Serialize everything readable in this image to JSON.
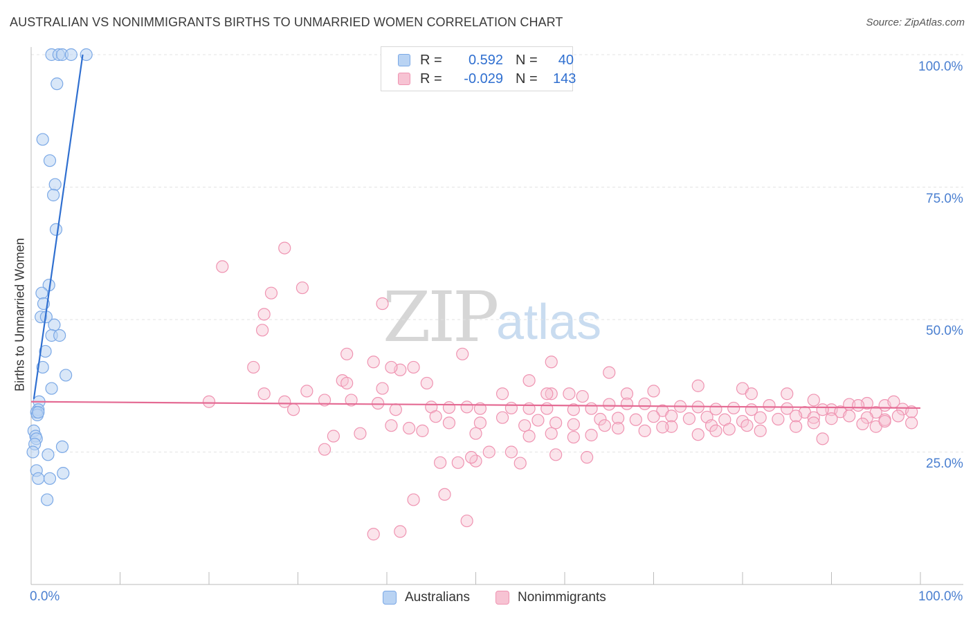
{
  "title": "AUSTRALIAN VS NONIMMIGRANTS BIRTHS TO UNMARRIED WOMEN CORRELATION CHART",
  "source": "Source: ZipAtlas.com",
  "watermark": {
    "zip": "ZIP",
    "atlas": "atlas"
  },
  "colors": {
    "blue_fill": "#b9d3f3",
    "blue_stroke": "#7aa8e6",
    "blue_line": "#2f6fd0",
    "pink_fill": "#f7c3d3",
    "pink_stroke": "#ef93b1",
    "pink_line": "#e46a93",
    "tick_text": "#4a7fd0",
    "grid": "#e3e3e3"
  },
  "legend": {
    "rows": [
      {
        "r_label": "R =",
        "r_value": "0.592",
        "n_label": "N =",
        "n_value": "40"
      },
      {
        "r_label": "R =",
        "r_value": "-0.029",
        "n_label": "N =",
        "n_value": "143"
      }
    ]
  },
  "bottom_legend": {
    "australians": "Australians",
    "nonimmigrants": "Nonimmigrants"
  },
  "chart_data": {
    "type": "scatter",
    "title": "AUSTRALIAN VS NONIMMIGRANTS BIRTHS TO UNMARRIED WOMEN CORRELATION CHART",
    "xlabel": "",
    "ylabel": "Births to Unmarried Women",
    "xlim": [
      0,
      100
    ],
    "ylim": [
      0,
      102
    ],
    "x_tick_labels": [
      "0.0%",
      "100.0%"
    ],
    "y_tick_labels": [
      "100.0%",
      "75.0%",
      "50.0%",
      "25.0%"
    ],
    "y_grid_values": [
      25,
      50,
      75,
      100
    ],
    "series": [
      {
        "name": "Australians",
        "R": 0.592,
        "N": 40,
        "trend": {
          "x": [
            0.3,
            5.8
          ],
          "y": [
            35.0,
            100.0
          ]
        },
        "points": [
          [
            2.3,
            100
          ],
          [
            3.1,
            100
          ],
          [
            3.5,
            100
          ],
          [
            4.5,
            100
          ],
          [
            6.2,
            100
          ],
          [
            2.9,
            94.5
          ],
          [
            1.3,
            84
          ],
          [
            2.1,
            80
          ],
          [
            2.7,
            75.5
          ],
          [
            2.5,
            73.5
          ],
          [
            2.8,
            67
          ],
          [
            2.0,
            56.5
          ],
          [
            1.2,
            55
          ],
          [
            1.4,
            53
          ],
          [
            1.1,
            50.5
          ],
          [
            1.7,
            50.5
          ],
          [
            2.6,
            49
          ],
          [
            2.3,
            47
          ],
          [
            3.2,
            47
          ],
          [
            1.6,
            44
          ],
          [
            1.3,
            41
          ],
          [
            3.9,
            39.5
          ],
          [
            2.3,
            37
          ],
          [
            0.9,
            34.5
          ],
          [
            0.8,
            33
          ],
          [
            0.6,
            32.5
          ],
          [
            0.7,
            32
          ],
          [
            0.3,
            29
          ],
          [
            0.5,
            28
          ],
          [
            0.6,
            27.5
          ],
          [
            0.4,
            26.5
          ],
          [
            3.5,
            26
          ],
          [
            0.2,
            25
          ],
          [
            1.9,
            24.5
          ],
          [
            0.6,
            21.5
          ],
          [
            3.6,
            21
          ],
          [
            0.8,
            20
          ],
          [
            2.1,
            20
          ],
          [
            1.8,
            16
          ],
          [
            0.8,
            32.5
          ]
        ]
      },
      {
        "name": "Nonimmigrants",
        "R": -0.029,
        "N": 143,
        "trend": {
          "x": [
            0,
            100
          ],
          "y": [
            34.5,
            33.3
          ]
        },
        "points": [
          [
            28.5,
            63.5
          ],
          [
            21.5,
            60
          ],
          [
            30.5,
            56
          ],
          [
            39.5,
            53
          ],
          [
            27,
            55
          ],
          [
            26.2,
            51
          ],
          [
            26,
            48
          ],
          [
            35.5,
            43.5
          ],
          [
            48.5,
            43.5
          ],
          [
            38.5,
            42
          ],
          [
            58.5,
            42
          ],
          [
            25,
            41
          ],
          [
            41.5,
            40.5
          ],
          [
            43,
            41
          ],
          [
            40.5,
            41
          ],
          [
            65,
            40
          ],
          [
            56,
            38.5
          ],
          [
            44.5,
            38
          ],
          [
            35,
            38.5
          ],
          [
            35.5,
            38
          ],
          [
            39.5,
            37
          ],
          [
            31,
            36.5
          ],
          [
            26.2,
            36
          ],
          [
            53,
            36
          ],
          [
            60.5,
            36
          ],
          [
            58.5,
            36
          ],
          [
            58,
            36
          ],
          [
            62,
            35.5
          ],
          [
            70,
            36.5
          ],
          [
            67,
            36
          ],
          [
            75,
            37.5
          ],
          [
            80,
            37
          ],
          [
            81,
            36
          ],
          [
            85,
            36
          ],
          [
            88,
            34.8
          ],
          [
            90,
            33
          ],
          [
            92,
            34
          ],
          [
            94,
            34.2
          ],
          [
            96,
            33.8
          ],
          [
            97,
            34.5
          ],
          [
            20,
            34.5
          ],
          [
            28.5,
            34.5
          ],
          [
            33,
            34.8
          ],
          [
            36,
            34.8
          ],
          [
            39,
            34.2
          ],
          [
            45,
            33.5
          ],
          [
            47,
            33.4
          ],
          [
            49,
            33.5
          ],
          [
            50.5,
            33.2
          ],
          [
            54,
            33.3
          ],
          [
            56,
            33.2
          ],
          [
            58,
            33.2
          ],
          [
            61,
            33
          ],
          [
            63,
            33.2
          ],
          [
            65,
            34
          ],
          [
            67,
            34.1
          ],
          [
            69,
            34.1
          ],
          [
            71,
            32.8
          ],
          [
            73,
            33.6
          ],
          [
            75,
            33.5
          ],
          [
            77,
            33.1
          ],
          [
            79,
            33.3
          ],
          [
            81,
            33
          ],
          [
            83,
            33.8
          ],
          [
            85,
            33.2
          ],
          [
            87,
            32.5
          ],
          [
            89,
            33
          ],
          [
            91,
            32.6
          ],
          [
            93,
            33.8
          ],
          [
            95,
            32.5
          ],
          [
            98,
            33.1
          ],
          [
            99,
            32.6
          ],
          [
            29.5,
            33
          ],
          [
            41,
            33
          ],
          [
            45.5,
            31.7
          ],
          [
            53,
            31.5
          ],
          [
            50.5,
            30.5
          ],
          [
            47,
            30.5
          ],
          [
            57,
            31
          ],
          [
            59,
            30.5
          ],
          [
            61,
            30.2
          ],
          [
            64,
            31.2
          ],
          [
            66,
            31.4
          ],
          [
            68,
            31.1
          ],
          [
            70,
            31.7
          ],
          [
            72,
            31.8
          ],
          [
            74,
            31.3
          ],
          [
            76,
            31.6
          ],
          [
            78,
            31.1
          ],
          [
            80,
            30.8
          ],
          [
            82,
            31.5
          ],
          [
            84,
            31.2
          ],
          [
            86,
            31.8
          ],
          [
            88,
            31.5
          ],
          [
            90,
            31.3
          ],
          [
            92,
            31.8
          ],
          [
            94,
            31.5
          ],
          [
            96,
            31.1
          ],
          [
            97.5,
            31.8
          ],
          [
            40.5,
            30
          ],
          [
            42.5,
            29.5
          ],
          [
            44,
            29
          ],
          [
            55.5,
            30
          ],
          [
            64.5,
            30
          ],
          [
            66,
            29.5
          ],
          [
            72,
            29.8
          ],
          [
            76.5,
            30
          ],
          [
            78.5,
            29.3
          ],
          [
            80.5,
            30
          ],
          [
            82,
            29
          ],
          [
            86,
            29.8
          ],
          [
            88,
            30.5
          ],
          [
            93.5,
            30.3
          ],
          [
            95,
            29.8
          ],
          [
            99,
            30.5
          ],
          [
            96,
            30.8
          ],
          [
            34,
            28
          ],
          [
            37,
            28.5
          ],
          [
            50,
            28.5
          ],
          [
            56,
            28
          ],
          [
            58.5,
            28.5
          ],
          [
            61,
            27.8
          ],
          [
            63,
            28.2
          ],
          [
            69,
            29
          ],
          [
            71,
            29.7
          ],
          [
            75,
            28.3
          ],
          [
            77,
            29
          ],
          [
            89,
            27.5
          ],
          [
            33,
            25.5
          ],
          [
            51.5,
            25
          ],
          [
            54,
            25
          ],
          [
            48,
            23
          ],
          [
            50,
            23.3
          ],
          [
            55,
            22.9
          ],
          [
            59,
            24.5
          ],
          [
            62.5,
            24
          ],
          [
            46,
            23
          ],
          [
            49.5,
            24
          ],
          [
            43,
            16
          ],
          [
            46.5,
            17
          ],
          [
            49,
            12
          ],
          [
            38.5,
            9.5
          ],
          [
            41.5,
            10
          ]
        ]
      }
    ]
  }
}
